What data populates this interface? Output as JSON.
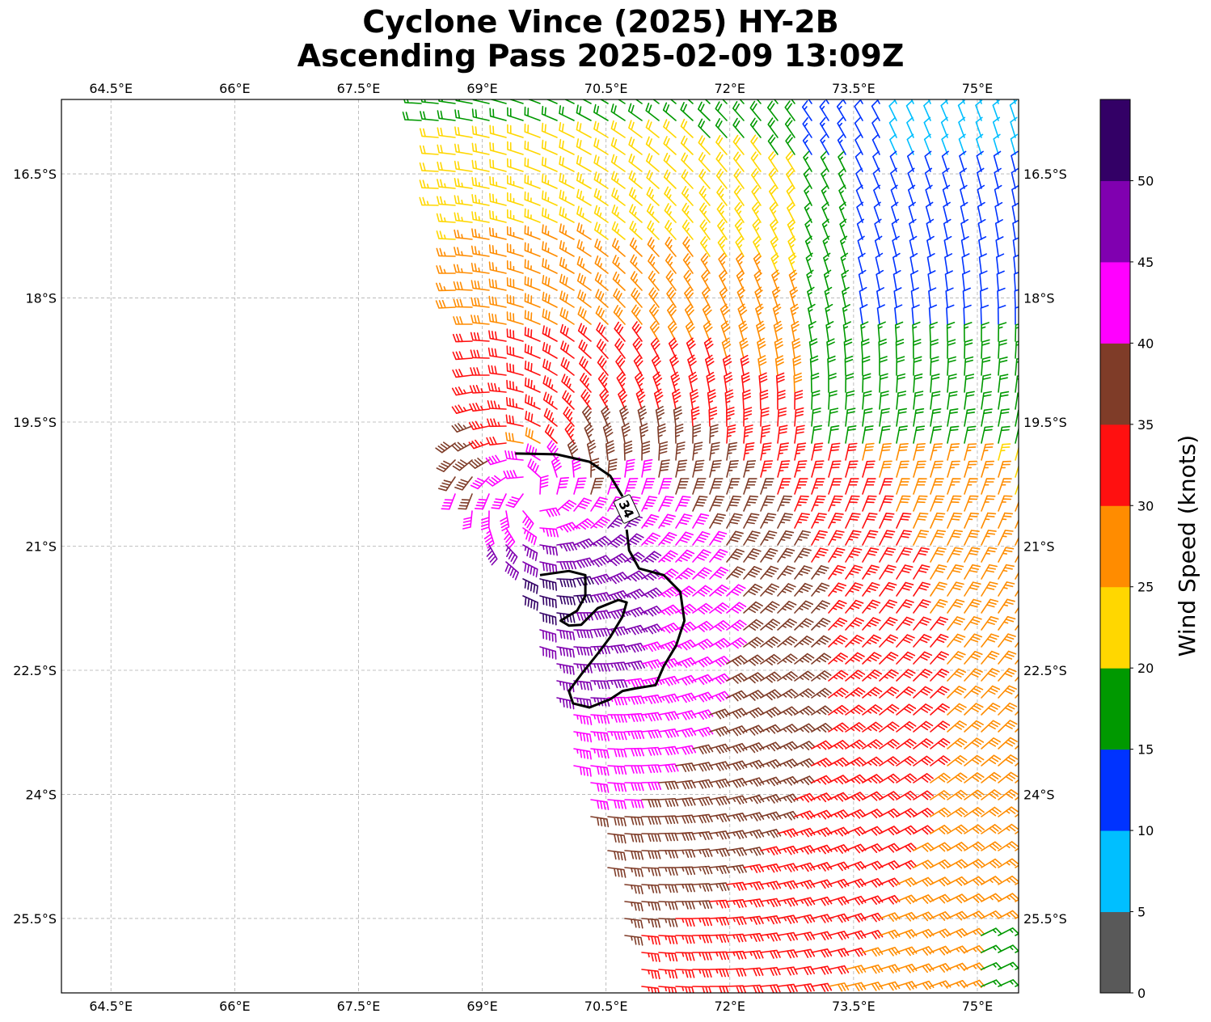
{
  "title": {
    "line1": "Cyclone Vince (2025) HY-2B",
    "line2": "Ascending Pass 2025-02-09 13:09Z"
  },
  "map": {
    "lon_range": [
      63.9,
      75.5
    ],
    "lat_range": [
      -26.4,
      -15.6
    ],
    "lon_ticks": [
      64.5,
      66.0,
      67.5,
      69.0,
      70.5,
      72.0,
      73.5,
      75.0
    ],
    "lon_tick_labels": [
      "64.5°E",
      "66°E",
      "67.5°E",
      "69°E",
      "70.5°E",
      "72°E",
      "73.5°E",
      "75°E"
    ],
    "lat_ticks": [
      -16.5,
      -18.0,
      -19.5,
      -21.0,
      -22.5,
      -24.0,
      -25.5
    ],
    "lat_tick_labels": [
      "16.5°S",
      "18°S",
      "19.5°S",
      "21°S",
      "22.5°S",
      "24°S",
      "25.5°S"
    ],
    "gridlines": true,
    "storm_center": {
      "lon": 69.6,
      "lat": -20.4
    },
    "contour_label": "34",
    "contour_34kt": [
      [
        69.4,
        -19.88
      ],
      [
        69.9,
        -19.89
      ],
      [
        70.3,
        -19.98
      ],
      [
        70.55,
        -20.15
      ],
      [
        70.7,
        -20.4
      ],
      [
        70.75,
        -20.55
      ],
      [
        70.75,
        -20.8
      ],
      [
        70.78,
        -21.05
      ],
      [
        70.9,
        -21.27
      ],
      [
        71.2,
        -21.35
      ],
      [
        71.4,
        -21.55
      ],
      [
        71.45,
        -21.9
      ],
      [
        71.35,
        -22.2
      ],
      [
        71.2,
        -22.45
      ],
      [
        71.1,
        -22.68
      ],
      [
        70.85,
        -22.72
      ],
      [
        70.7,
        -22.75
      ],
      [
        70.55,
        -22.85
      ],
      [
        70.3,
        -22.95
      ],
      [
        70.1,
        -22.9
      ],
      [
        70.05,
        -22.75
      ],
      [
        70.2,
        -22.55
      ],
      [
        70.4,
        -22.3
      ],
      [
        70.55,
        -22.1
      ],
      [
        70.7,
        -21.85
      ],
      [
        70.75,
        -21.68
      ],
      [
        70.65,
        -21.65
      ],
      [
        70.4,
        -21.75
      ],
      [
        70.2,
        -21.95
      ],
      [
        70.05,
        -21.96
      ],
      [
        69.95,
        -21.9
      ],
      [
        70.15,
        -21.78
      ],
      [
        70.25,
        -21.6
      ],
      [
        70.25,
        -21.35
      ],
      [
        70.05,
        -21.3
      ],
      [
        69.7,
        -21.35
      ]
    ]
  },
  "colorbar": {
    "label": "Wind Speed (knots)",
    "tick_values": [
      0,
      5,
      10,
      15,
      20,
      25,
      30,
      35,
      40,
      45,
      50
    ],
    "tick_labels": [
      "0",
      "5",
      "10",
      "15",
      "20",
      "25",
      "30",
      "35",
      "40",
      "45",
      "50"
    ],
    "max": 55,
    "bins": [
      {
        "min": 0,
        "max": 5,
        "color": "#595959"
      },
      {
        "min": 5,
        "max": 10,
        "color": "#00bfff"
      },
      {
        "min": 10,
        "max": 15,
        "color": "#0033ff"
      },
      {
        "min": 15,
        "max": 20,
        "color": "#009900"
      },
      {
        "min": 20,
        "max": 25,
        "color": "#ffd700"
      },
      {
        "min": 25,
        "max": 30,
        "color": "#ff8c00"
      },
      {
        "min": 30,
        "max": 35,
        "color": "#ff1010"
      },
      {
        "min": 35,
        "max": 40,
        "color": "#7f3c28"
      },
      {
        "min": 40,
        "max": 45,
        "color": "#ff00ff"
      },
      {
        "min": 45,
        "max": 50,
        "color": "#8000b0"
      },
      {
        "min": 50,
        "max": 55,
        "color": "#330066"
      }
    ]
  }
}
